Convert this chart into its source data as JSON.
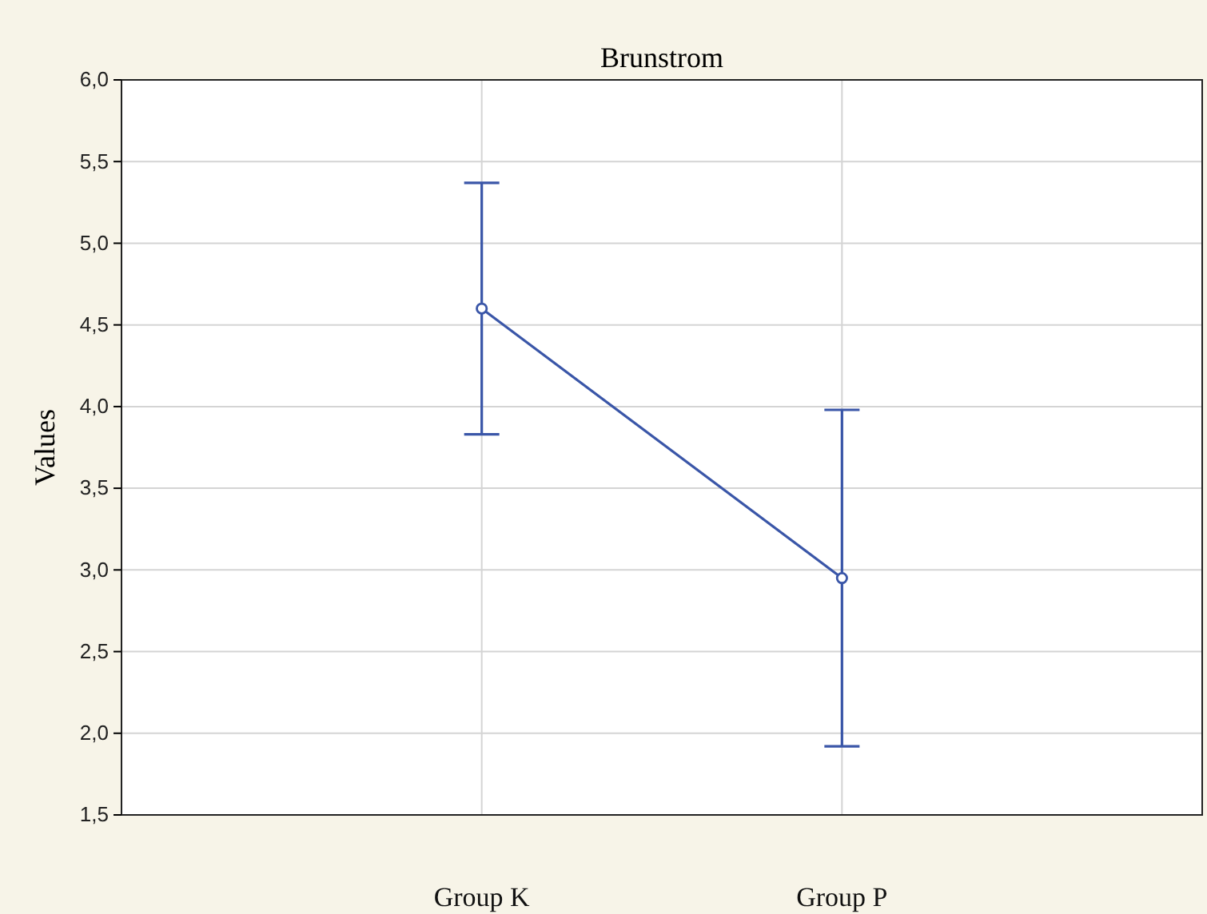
{
  "chart_data": {
    "type": "line",
    "title": "Brunstrom",
    "ylabel": "Values",
    "categories": [
      "Group K",
      "Group P"
    ],
    "series": [
      {
        "color": "#3a56a8",
        "values": [
          4.6,
          2.95
        ],
        "errors": [
          0.77,
          1.03
        ]
      }
    ],
    "ylim": [
      1.5,
      6.0
    ],
    "yticks": [
      {
        "value": 1.5,
        "label": "1,5"
      },
      {
        "value": 2.0,
        "label": "2,0"
      },
      {
        "value": 2.5,
        "label": "2,5"
      },
      {
        "value": 3.0,
        "label": "3,0"
      },
      {
        "value": 3.5,
        "label": "3,5"
      },
      {
        "value": 4.0,
        "label": "4,0"
      },
      {
        "value": 4.5,
        "label": "4,5"
      },
      {
        "value": 5.0,
        "label": "5,0"
      },
      {
        "value": 5.5,
        "label": "5,5"
      },
      {
        "value": 6.0,
        "label": "6,0"
      }
    ],
    "grid": true,
    "marker": "circle",
    "line_style": "solid"
  }
}
